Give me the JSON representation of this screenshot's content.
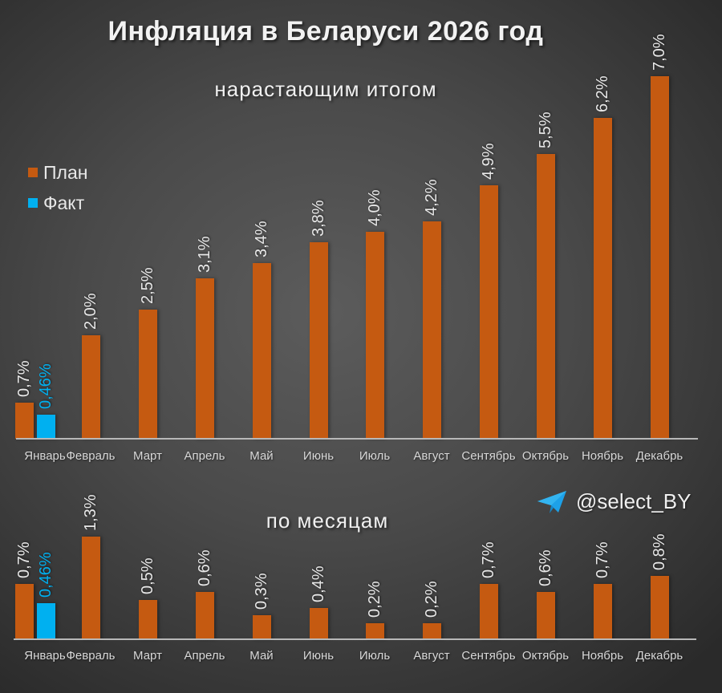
{
  "title": "Инфляция в Беларуси 2026 год",
  "subtitle_cumulative": "нарастающим итогом",
  "subtitle_monthly": "по месяцам",
  "legend": [
    {
      "label": "План",
      "color": "#c55a11"
    },
    {
      "label": "Факт",
      "color": "#00b0f0"
    }
  ],
  "watermark": {
    "icon": "telegram-icon",
    "handle": "@select_BY"
  },
  "colors": {
    "plan": "#c55a11",
    "fact": "#00b0f0",
    "axis": "#b8b8b8",
    "text": "#e8e8e8"
  },
  "chart_data": [
    {
      "type": "bar",
      "title": "нарастающим итогом",
      "xlabel": "",
      "ylabel": "",
      "grid": false,
      "legend_position": "left",
      "categories": [
        "Январь",
        "Февраль",
        "Март",
        "Апрель",
        "Май",
        "Июнь",
        "Июль",
        "Август",
        "Сентябрь",
        "Октябрь",
        "Ноябрь",
        "Декабрь"
      ],
      "series": [
        {
          "name": "План",
          "values": [
            0.7,
            2.0,
            2.5,
            3.1,
            3.4,
            3.8,
            4.0,
            4.2,
            4.9,
            5.5,
            6.2,
            7.0
          ],
          "labels": [
            "0,7%",
            "2,0%",
            "2,5%",
            "3,1%",
            "3,4%",
            "3,8%",
            "4,0%",
            "4,2%",
            "4,9%",
            "5,5%",
            "6,2%",
            "7,0%"
          ]
        },
        {
          "name": "Факт",
          "values": [
            0.46,
            null,
            null,
            null,
            null,
            null,
            null,
            null,
            null,
            null,
            null,
            null
          ],
          "labels": [
            "0,46%",
            "",
            "",
            "",
            "",
            "",
            "",
            "",
            "",
            "",
            "",
            ""
          ]
        }
      ],
      "ylim": [
        0,
        7.0
      ]
    },
    {
      "type": "bar",
      "title": "по месяцам",
      "xlabel": "",
      "ylabel": "",
      "grid": false,
      "categories": [
        "Январь",
        "Февраль",
        "Март",
        "Апрель",
        "Май",
        "Июнь",
        "Июль",
        "Август",
        "Сентябрь",
        "Октябрь",
        "Ноябрь",
        "Декабрь"
      ],
      "series": [
        {
          "name": "План",
          "values": [
            0.7,
            1.3,
            0.5,
            0.6,
            0.3,
            0.4,
            0.2,
            0.2,
            0.7,
            0.6,
            0.7,
            0.8
          ],
          "labels": [
            "0,7%",
            "1,3%",
            "0,5%",
            "0,6%",
            "0,3%",
            "0,4%",
            "0,2%",
            "0,2%",
            "0,7%",
            "0,6%",
            "0,7%",
            "0,8%"
          ]
        },
        {
          "name": "Факт",
          "values": [
            0.46,
            null,
            null,
            null,
            null,
            null,
            null,
            null,
            null,
            null,
            null,
            null
          ],
          "labels": [
            "0,46%",
            "",
            "",
            "",
            "",
            "",
            "",
            "",
            "",
            "",
            "",
            ""
          ]
        }
      ],
      "ylim": [
        0,
        1.3
      ]
    }
  ]
}
